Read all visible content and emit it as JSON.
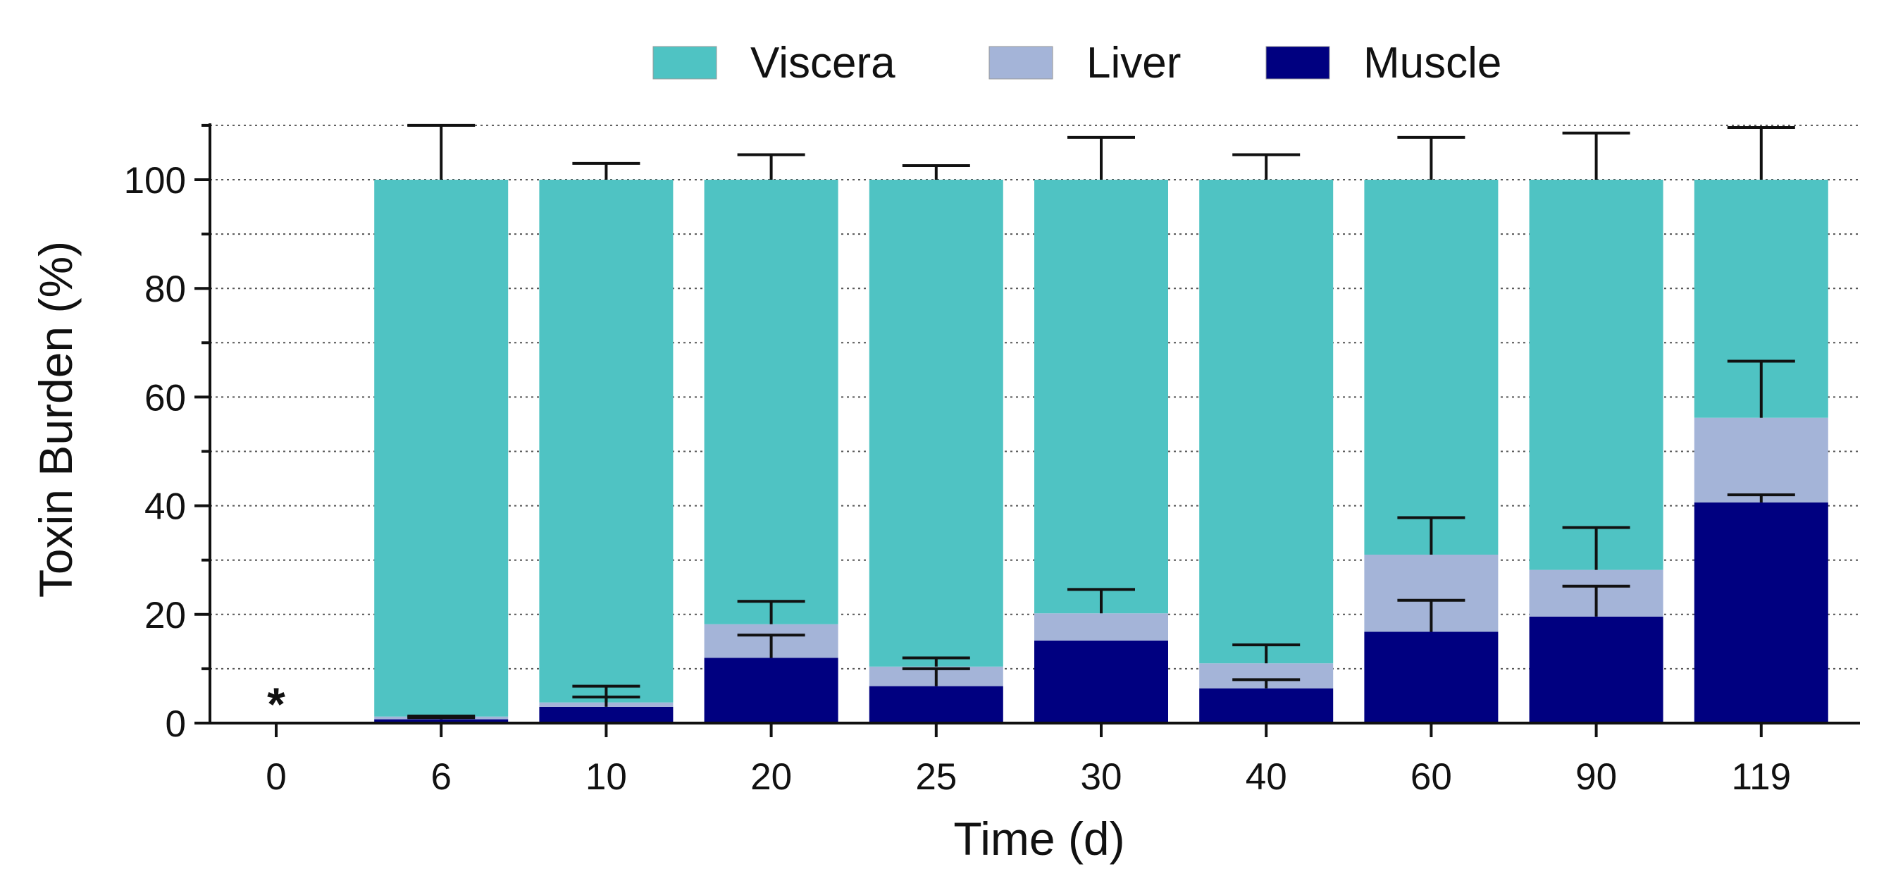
{
  "chart_data": {
    "type": "bar",
    "stacked": true,
    "title": "",
    "xlabel": "Time (d)",
    "ylabel": "Toxin Burden (%)",
    "ylim": [
      0,
      110
    ],
    "yticks": [
      0,
      20,
      40,
      60,
      80,
      100
    ],
    "grid": true,
    "legend_position": "top-center",
    "categories": [
      "0",
      "6",
      "10",
      "20",
      "25",
      "30",
      "40",
      "60",
      "90",
      "119"
    ],
    "annotation": "*",
    "annotation_category": "0",
    "series": [
      {
        "name": "Muscle",
        "color": "#000080",
        "values": [
          0,
          0.7,
          3.0,
          12.0,
          6.8,
          15.2,
          6.4,
          16.8,
          19.6,
          40.6
        ],
        "error_top": [
          0,
          1.0,
          4.8,
          16.2,
          10.0,
          15.2,
          8.0,
          22.6,
          25.2,
          42.0
        ]
      },
      {
        "name": "Liver",
        "color": "#a4b4d8",
        "values": [
          0,
          0.5,
          0.8,
          6.2,
          3.6,
          5.0,
          4.6,
          14.2,
          8.6,
          15.6
        ],
        "error_top": [
          0,
          1.3,
          6.8,
          22.4,
          12.0,
          24.6,
          14.4,
          37.8,
          36.0,
          66.6
        ]
      },
      {
        "name": "Viscera",
        "color": "#4fc3c3",
        "values": [
          0,
          98.8,
          96.2,
          81.8,
          89.6,
          79.8,
          89.0,
          69.0,
          71.8,
          43.8
        ],
        "error_top": [
          0,
          110,
          103.0,
          104.6,
          102.6,
          107.8,
          104.6,
          107.8,
          108.6,
          109.6
        ]
      }
    ],
    "legend_order": [
      "Viscera",
      "Liver",
      "Muscle"
    ]
  }
}
